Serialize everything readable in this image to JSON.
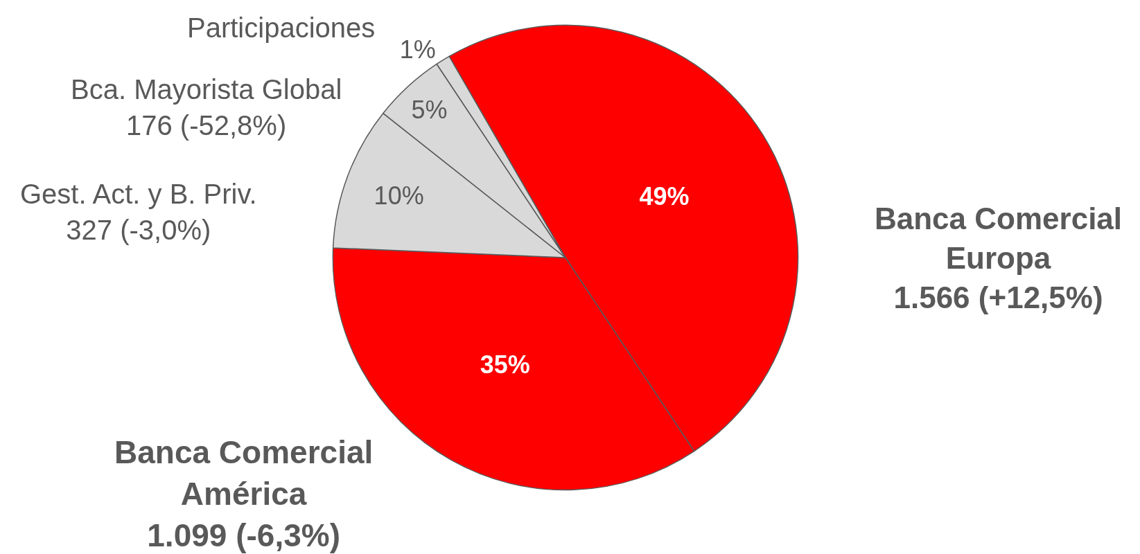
{
  "chart_data": {
    "type": "pie",
    "categories": [
      "Banca Comercial\nEuropa\n1.566 (+12,5%)",
      "Banca Comercial\nAmérica\n1.099 (-6,3%)",
      "Gest. Act. y B. Priv.\n327 (-3,0%)",
      "Bca. Mayorista Global\n176 (-52,8%)",
      "Participaciones"
    ],
    "values": [
      49,
      35,
      10,
      5,
      1
    ],
    "value_labels": [
      "49%",
      "35%",
      "10%",
      "5%",
      "1%"
    ],
    "colors": [
      "#ff0000",
      "#ff0000",
      "#d9d9d9",
      "#d9d9d9",
      "#d9d9d9"
    ]
  }
}
